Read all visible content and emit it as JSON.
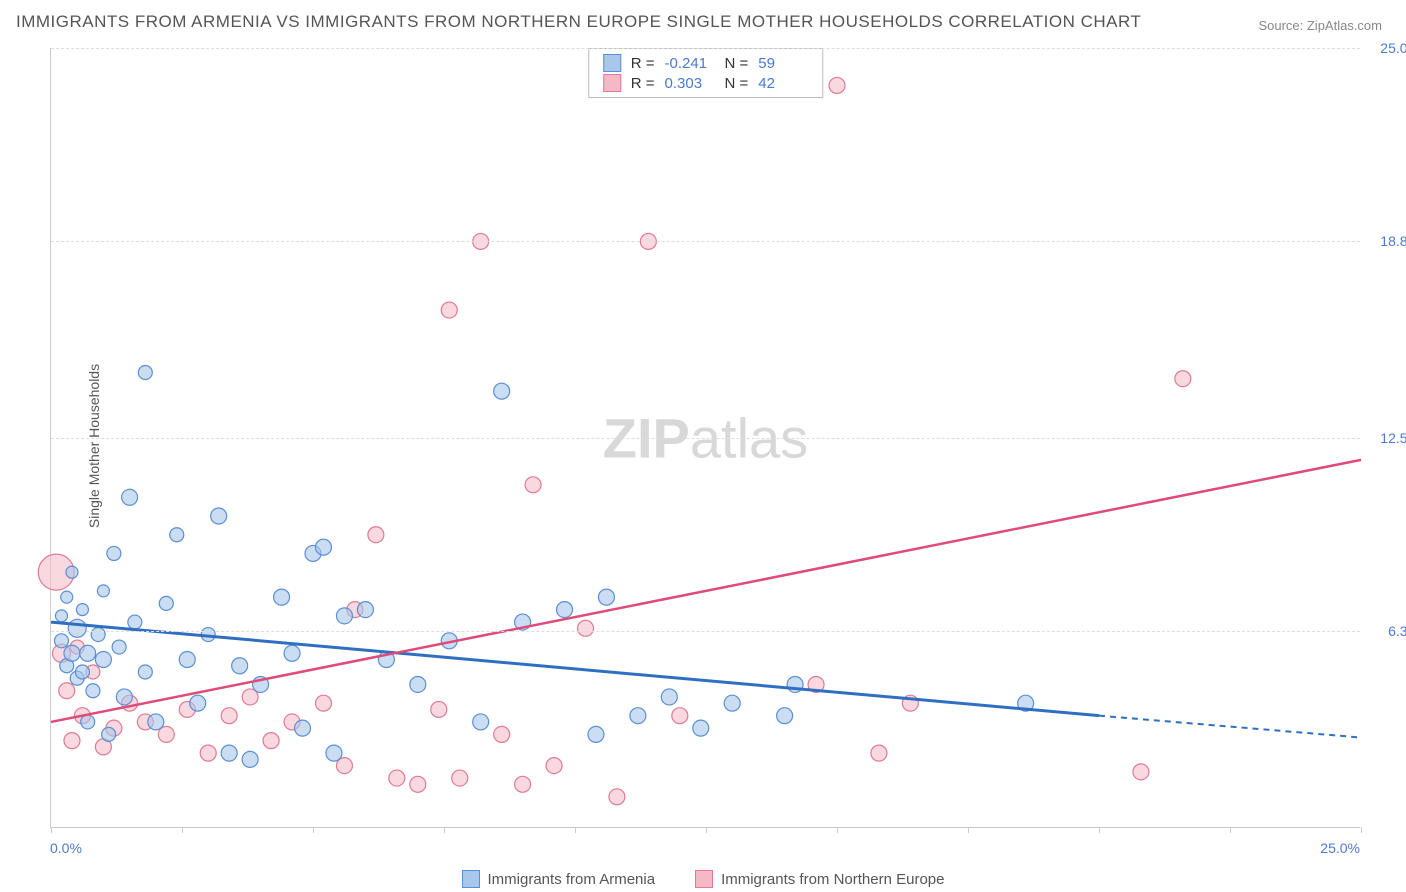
{
  "title": "IMMIGRANTS FROM ARMENIA VS IMMIGRANTS FROM NORTHERN EUROPE SINGLE MOTHER HOUSEHOLDS CORRELATION CHART",
  "source_prefix": "Source: ",
  "source": "ZipAtlas.com",
  "y_axis_label": "Single Mother Households",
  "watermark_bold": "ZIP",
  "watermark_light": "atlas",
  "chart": {
    "type": "scatter",
    "xlim": [
      0,
      25
    ],
    "ylim": [
      0,
      25
    ],
    "x_ticks": [
      0,
      2.5,
      5,
      7.5,
      10,
      12.5,
      15,
      17.5,
      20,
      22.5,
      25
    ],
    "y_ticks": [
      6.3,
      12.5,
      18.8,
      25.0
    ],
    "x_start_label": "0.0%",
    "x_end_label": "25.0%",
    "grid_color": "#dddddd",
    "axis_color": "#cccccc",
    "tick_label_color": "#4a7bd0",
    "background_color": "#ffffff"
  },
  "series": [
    {
      "name": "Immigrants from Armenia",
      "fill": "#a9c7ea",
      "fill_opacity": 0.6,
      "stroke": "#5a8fd4",
      "line_color": "#2f6fc2",
      "R": "-0.241",
      "N": "59",
      "trend": {
        "x1": 0,
        "y1": 6.6,
        "x2": 20,
        "y2": 3.6,
        "dash_x2": 25,
        "dash_y2": 2.9
      },
      "points": [
        {
          "x": 0.2,
          "y": 6.0,
          "r": 7
        },
        {
          "x": 0.2,
          "y": 6.8,
          "r": 6
        },
        {
          "x": 0.3,
          "y": 5.2,
          "r": 7
        },
        {
          "x": 0.3,
          "y": 7.4,
          "r": 6
        },
        {
          "x": 0.4,
          "y": 5.6,
          "r": 8
        },
        {
          "x": 0.4,
          "y": 8.2,
          "r": 6
        },
        {
          "x": 0.5,
          "y": 4.8,
          "r": 7
        },
        {
          "x": 0.5,
          "y": 6.4,
          "r": 9
        },
        {
          "x": 0.6,
          "y": 5.0,
          "r": 7
        },
        {
          "x": 0.6,
          "y": 7.0,
          "r": 6
        },
        {
          "x": 0.7,
          "y": 3.4,
          "r": 7
        },
        {
          "x": 0.7,
          "y": 5.6,
          "r": 8
        },
        {
          "x": 0.8,
          "y": 4.4,
          "r": 7
        },
        {
          "x": 0.9,
          "y": 6.2,
          "r": 7
        },
        {
          "x": 1.0,
          "y": 5.4,
          "r": 8
        },
        {
          "x": 1.0,
          "y": 7.6,
          "r": 6
        },
        {
          "x": 1.1,
          "y": 3.0,
          "r": 7
        },
        {
          "x": 1.2,
          "y": 8.8,
          "r": 7
        },
        {
          "x": 1.3,
          "y": 5.8,
          "r": 7
        },
        {
          "x": 1.4,
          "y": 4.2,
          "r": 8
        },
        {
          "x": 1.5,
          "y": 10.6,
          "r": 8
        },
        {
          "x": 1.6,
          "y": 6.6,
          "r": 7
        },
        {
          "x": 1.8,
          "y": 5.0,
          "r": 7
        },
        {
          "x": 1.8,
          "y": 14.6,
          "r": 7
        },
        {
          "x": 2.0,
          "y": 3.4,
          "r": 8
        },
        {
          "x": 2.2,
          "y": 7.2,
          "r": 7
        },
        {
          "x": 2.4,
          "y": 9.4,
          "r": 7
        },
        {
          "x": 2.6,
          "y": 5.4,
          "r": 8
        },
        {
          "x": 2.8,
          "y": 4.0,
          "r": 8
        },
        {
          "x": 3.0,
          "y": 6.2,
          "r": 7
        },
        {
          "x": 3.2,
          "y": 10.0,
          "r": 8
        },
        {
          "x": 3.4,
          "y": 2.4,
          "r": 8
        },
        {
          "x": 3.6,
          "y": 5.2,
          "r": 8
        },
        {
          "x": 3.8,
          "y": 2.2,
          "r": 8
        },
        {
          "x": 4.0,
          "y": 4.6,
          "r": 8
        },
        {
          "x": 4.4,
          "y": 7.4,
          "r": 8
        },
        {
          "x": 4.8,
          "y": 3.2,
          "r": 8
        },
        {
          "x": 5.0,
          "y": 8.8,
          "r": 8
        },
        {
          "x": 5.2,
          "y": 9.0,
          "r": 8
        },
        {
          "x": 5.4,
          "y": 2.4,
          "r": 8
        },
        {
          "x": 5.6,
          "y": 6.8,
          "r": 8
        },
        {
          "x": 6.0,
          "y": 7.0,
          "r": 8
        },
        {
          "x": 6.4,
          "y": 5.4,
          "r": 8
        },
        {
          "x": 7.0,
          "y": 4.6,
          "r": 8
        },
        {
          "x": 7.6,
          "y": 6.0,
          "r": 8
        },
        {
          "x": 8.2,
          "y": 3.4,
          "r": 8
        },
        {
          "x": 8.6,
          "y": 14.0,
          "r": 8
        },
        {
          "x": 9.0,
          "y": 6.6,
          "r": 8
        },
        {
          "x": 9.8,
          "y": 7.0,
          "r": 8
        },
        {
          "x": 10.4,
          "y": 3.0,
          "r": 8
        },
        {
          "x": 10.6,
          "y": 7.4,
          "r": 8
        },
        {
          "x": 11.2,
          "y": 3.6,
          "r": 8
        },
        {
          "x": 11.8,
          "y": 4.2,
          "r": 8
        },
        {
          "x": 12.4,
          "y": 3.2,
          "r": 8
        },
        {
          "x": 13.0,
          "y": 4.0,
          "r": 8
        },
        {
          "x": 14.0,
          "y": 3.6,
          "r": 8
        },
        {
          "x": 14.2,
          "y": 4.6,
          "r": 8
        },
        {
          "x": 18.6,
          "y": 4.0,
          "r": 8
        },
        {
          "x": 4.6,
          "y": 5.6,
          "r": 8
        }
      ]
    },
    {
      "name": "Immigrants from Northern Europe",
      "fill": "#f4b8c6",
      "fill_opacity": 0.55,
      "stroke": "#e07a94",
      "line_color": "#e04a78",
      "R": "0.303",
      "N": "42",
      "trend": {
        "x1": 0,
        "y1": 3.4,
        "x2": 25,
        "y2": 11.8
      },
      "points": [
        {
          "x": 0.1,
          "y": 8.2,
          "r": 18
        },
        {
          "x": 0.2,
          "y": 5.6,
          "r": 9
        },
        {
          "x": 0.3,
          "y": 4.4,
          "r": 8
        },
        {
          "x": 0.4,
          "y": 2.8,
          "r": 8
        },
        {
          "x": 0.5,
          "y": 5.8,
          "r": 7
        },
        {
          "x": 0.6,
          "y": 3.6,
          "r": 8
        },
        {
          "x": 0.8,
          "y": 5.0,
          "r": 7
        },
        {
          "x": 1.0,
          "y": 2.6,
          "r": 8
        },
        {
          "x": 1.2,
          "y": 3.2,
          "r": 8
        },
        {
          "x": 1.5,
          "y": 4.0,
          "r": 8
        },
        {
          "x": 1.8,
          "y": 3.4,
          "r": 8
        },
        {
          "x": 2.2,
          "y": 3.0,
          "r": 8
        },
        {
          "x": 2.6,
          "y": 3.8,
          "r": 8
        },
        {
          "x": 3.0,
          "y": 2.4,
          "r": 8
        },
        {
          "x": 3.4,
          "y": 3.6,
          "r": 8
        },
        {
          "x": 3.8,
          "y": 4.2,
          "r": 8
        },
        {
          "x": 4.2,
          "y": 2.8,
          "r": 8
        },
        {
          "x": 4.6,
          "y": 3.4,
          "r": 8
        },
        {
          "x": 5.2,
          "y": 4.0,
          "r": 8
        },
        {
          "x": 5.8,
          "y": 7.0,
          "r": 8
        },
        {
          "x": 6.2,
          "y": 9.4,
          "r": 8
        },
        {
          "x": 6.6,
          "y": 1.6,
          "r": 8
        },
        {
          "x": 7.0,
          "y": 1.4,
          "r": 8
        },
        {
          "x": 7.4,
          "y": 3.8,
          "r": 8
        },
        {
          "x": 7.6,
          "y": 16.6,
          "r": 8
        },
        {
          "x": 7.8,
          "y": 1.6,
          "r": 8
        },
        {
          "x": 8.2,
          "y": 18.8,
          "r": 8
        },
        {
          "x": 8.6,
          "y": 3.0,
          "r": 8
        },
        {
          "x": 9.0,
          "y": 1.4,
          "r": 8
        },
        {
          "x": 9.2,
          "y": 11.0,
          "r": 8
        },
        {
          "x": 9.6,
          "y": 2.0,
          "r": 8
        },
        {
          "x": 10.2,
          "y": 6.4,
          "r": 8
        },
        {
          "x": 10.8,
          "y": 1.0,
          "r": 8
        },
        {
          "x": 11.4,
          "y": 18.8,
          "r": 8
        },
        {
          "x": 12.0,
          "y": 3.6,
          "r": 8
        },
        {
          "x": 14.6,
          "y": 4.6,
          "r": 8
        },
        {
          "x": 15.0,
          "y": 23.8,
          "r": 8
        },
        {
          "x": 15.8,
          "y": 2.4,
          "r": 8
        },
        {
          "x": 16.4,
          "y": 4.0,
          "r": 8
        },
        {
          "x": 20.8,
          "y": 1.8,
          "r": 8
        },
        {
          "x": 21.6,
          "y": 14.4,
          "r": 8
        },
        {
          "x": 5.6,
          "y": 2.0,
          "r": 8
        }
      ]
    }
  ],
  "stats_labels": {
    "R": "R =",
    "N": "N ="
  },
  "legend": {
    "series1": "Immigrants from Armenia",
    "series2": "Immigrants from Northern Europe"
  }
}
